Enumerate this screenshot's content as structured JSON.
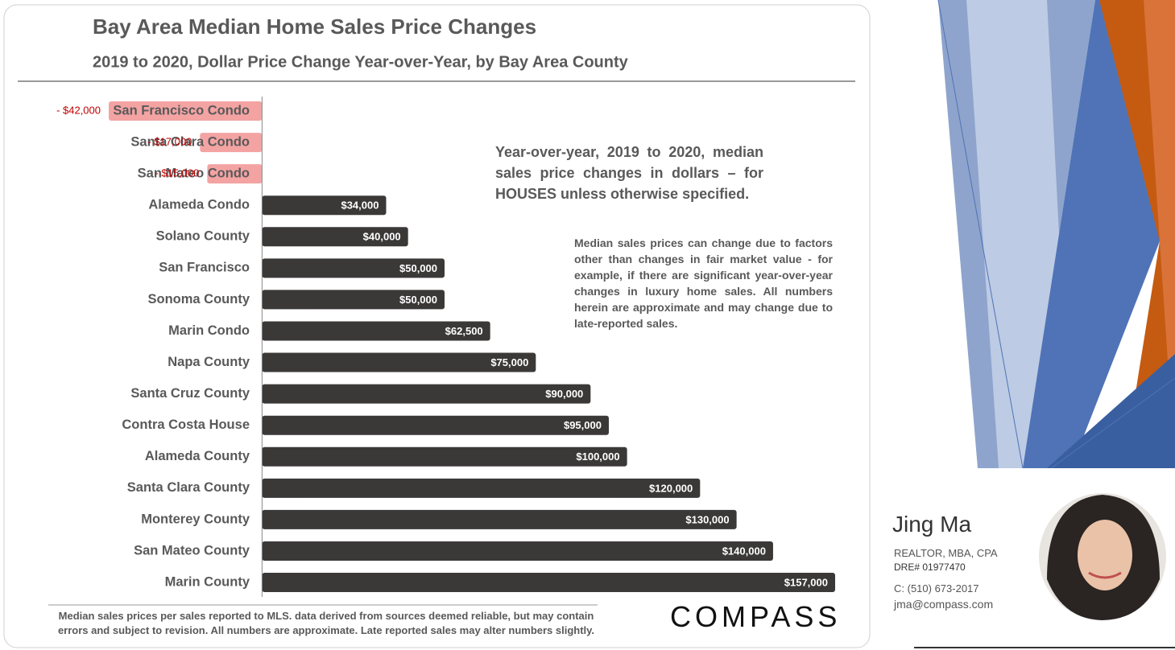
{
  "chart_data": {
    "type": "hbar",
    "title": "Bay Area Median Home Sales Price Changes",
    "subtitle": "2019 to 2020, Dollar  Price Change  Year-over-Year,  by Bay Area County",
    "categories": [
      "San Francisco Condo",
      "Santa Clara Condo",
      "San Mateo Condo",
      "Alameda Condo",
      "Solano County",
      "San Francisco",
      "Sonoma County",
      "Marin Condo",
      "Napa County",
      "Santa Cruz County",
      "Contra Costa House",
      "Alameda County",
      "Santa Clara County",
      "Monterey County",
      "San Mateo County",
      "Marin County"
    ],
    "values": [
      -42000,
      -17000,
      -15000,
      34000,
      40000,
      50000,
      50000,
      62500,
      75000,
      90000,
      95000,
      100000,
      120000,
      130000,
      140000,
      157000
    ],
    "value_labels": [
      "- $42,000",
      "- $17,000",
      "- $15,000",
      "$34,000",
      "$40,000",
      "$50,000",
      "$50,000",
      "$62,500",
      "$75,000",
      "$90,000",
      "$95,000",
      "$100,000",
      "$120,000",
      "$130,000",
      "$140,000",
      "$157,000"
    ],
    "xlim": [
      -42000,
      157000
    ],
    "color": "#3b3838",
    "negative_color": "#f4a3a3",
    "annotations": [
      "Year-over-year, 2019 to 2020, median sales price changes in dollars – for HOUSES unless otherwise specified.",
      "Median sales prices can change due to factors other than changes in fair market value - for example, if there are significant year-over-year changes in luxury home sales. All numbers herein are approximate and may change due to late-reported sales."
    ],
    "footnote": "Median sales prices per sales reported to MLS. data derived from sources deemed reliable, but may contain errors and subject to revision.  All numbers are approximate. Late reported sales may alter numbers slightly."
  },
  "slide": {
    "logo": "COMPASS",
    "agent": {
      "name": "Jing Ma",
      "credentials": "REALTOR, MBA, CPA",
      "license": "DRE# 01977470",
      "phone": "C: (510) 673-2017",
      "email": "jma@compass.com"
    }
  }
}
